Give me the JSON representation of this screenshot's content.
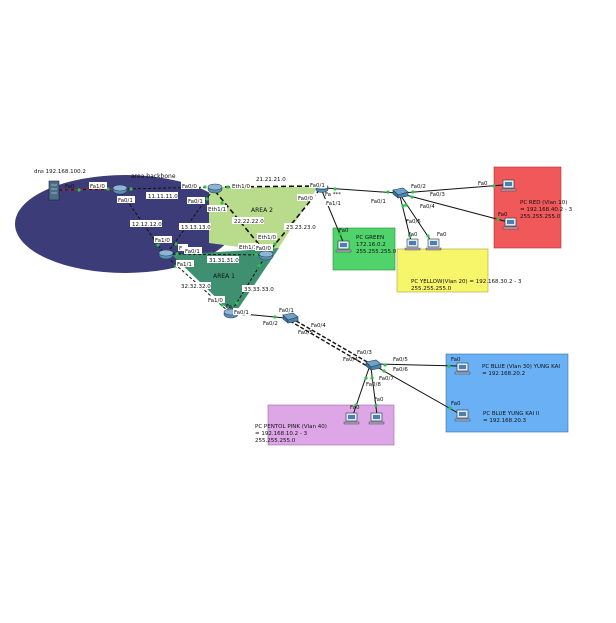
{
  "colors": {
    "backbone_area": "#3c3c78",
    "area2": "#b8dc8c",
    "area1": "#3f9070",
    "green_box": "#4fd36a",
    "yellow_box": "#f7f56a",
    "red_box": "#f0585a",
    "blue_box": "#6ab0f4",
    "pink_box": "#dda6e6",
    "link_red": "#d12020",
    "link_black": "#111111"
  },
  "server": {
    "label": "dns 192.168.100.2",
    "port": "Fa0"
  },
  "areas": {
    "backbone": "area backbone",
    "area2": "AREA 2",
    "area1": "AREA 1"
  },
  "networks": {
    "n11": "11.11.11.0",
    "n12": "12.12.12.0",
    "n13": "13.13.13.0",
    "n21": "21.21.21.0",
    "n22": "22.22.22.0",
    "n23": "23.23.23.0",
    "n31": "31.31.31.0",
    "n32": "32.32.32.0",
    "n33": "33.33.33.0"
  },
  "ports": {
    "r1_fa10": "Fa1/0",
    "r1_fa01": "Fa0/1",
    "r2_fa00": "Fa0/0",
    "r2_fa01": "Fa0/1",
    "r3_fa10": "Fa1/0",
    "r3_fa01": "Fa0/1",
    "r3_fa11": "Fa1/1",
    "r3_e": "F",
    "r4_eth10": "Eth1/0",
    "r4_eth11": "Eth1/1",
    "r5_fa01": "Fa0/1",
    "r5_fa00": "Fa0/0",
    "r5_fa11": "Fa1/1",
    "r5_frag": "Fa ***",
    "r6_eth11": "Eth1/1",
    "r6_eth10": "Eth1/0",
    "r6_fa": "Fa0/0",
    "r7_fa01": "Fa0/1",
    "r7_fa10": "Fa1/0",
    "r7_frag": "Fa",
    "sw1_fa01": "Fa0/1",
    "sw1_fa05": "Fa0/5",
    "sw1_fa02": "Fa0/2",
    "sw1_fa03": "Fa0/3",
    "sw1_fa04": "Fa0/4",
    "sw2_fa01": "Fa0/1",
    "sw2_fa02": "Fa0/2",
    "sw2_fa04": "Fa0/4",
    "sw2_fa05": "Fa0/5",
    "sw3_fa03": "Fa0/3",
    "sw3_fa04": "Fa0/4",
    "sw3_fa05": "Fa0/5",
    "sw3_fa06": "Fa0/6",
    "sw3_fa07": "Fa0/7",
    "sw3_fa08": "Fa0/8",
    "pc_fa0": "Fa0"
  },
  "pcs": {
    "green": [
      "PC GREEN",
      "172.16.0.2",
      "255.255.255.0"
    ],
    "yellow": [
      "PC YELLOW(Vlan 20) = 192.168.30.2 - 3",
      "255.255.255.0"
    ],
    "red": [
      "PC RED (Vlan 10)",
      "= 192.168.40.2 - 3",
      "255.255.255.0"
    ],
    "blue1": [
      "PC BLUE (Vlan 30) YUNG KAI",
      "= 192.168.20.2"
    ],
    "blue2": [
      "PC BLUE YUNG KAI II",
      "= 192.168.20.3"
    ],
    "pink": [
      "PC PENTOL PINK (Vlan 40)",
      "= 192.168.10.2 - 3",
      "255.255.255.0"
    ]
  }
}
